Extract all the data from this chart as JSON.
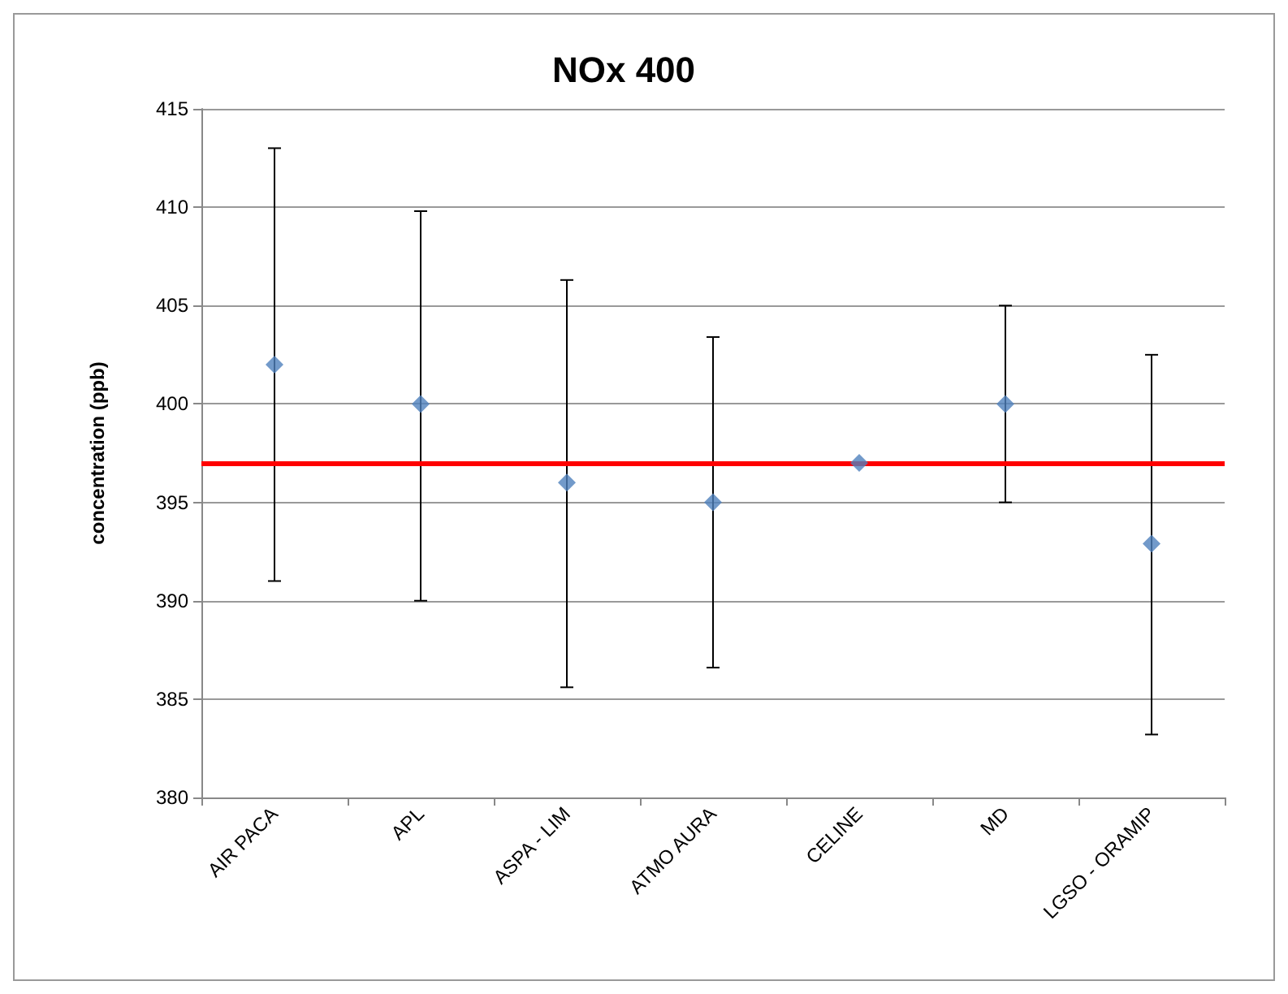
{
  "chart_data": {
    "type": "scatter",
    "title": "NOx 400",
    "ylabel": "concentration (ppb)",
    "categories": [
      "AIR PACA",
      "APL",
      "ASPA - LIM",
      "ATMO AURA",
      "CELINE",
      "MD",
      "LGSO - ORAMIP"
    ],
    "values": [
      402,
      400,
      396,
      395,
      397,
      400,
      392.9
    ],
    "errors": [
      [
        391,
        413
      ],
      [
        390,
        409.8
      ],
      [
        385.6,
        406.3
      ],
      [
        386.6,
        403.4
      ],
      null,
      [
        395,
        405
      ],
      [
        383.2,
        402.5
      ]
    ],
    "color": "#4f81bd",
    "marker": "diamond",
    "grid": "y",
    "ylim": [
      380,
      415
    ],
    "yticks": [
      380,
      385,
      390,
      395,
      400,
      405,
      410,
      415
    ],
    "ref_lines": [
      {
        "axis": "y",
        "value": 397,
        "color": "#ff0000"
      }
    ]
  }
}
